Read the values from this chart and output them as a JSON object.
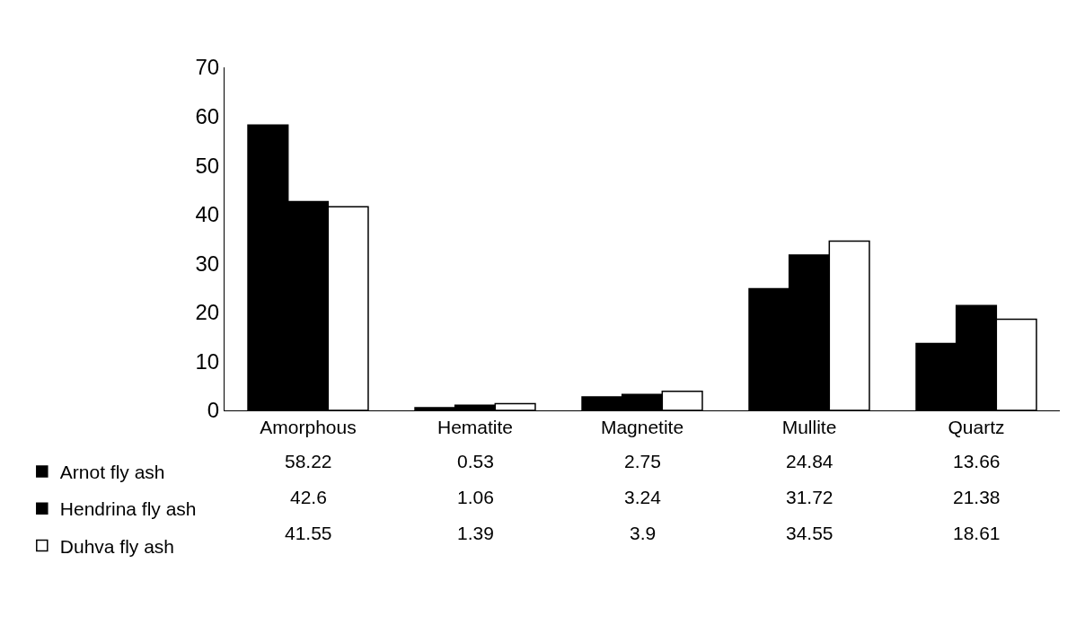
{
  "chart_data": {
    "type": "bar",
    "categories": [
      "Amorphous",
      "Hematite",
      "Magnetite",
      "Mullite",
      "Quartz"
    ],
    "series": [
      {
        "name": "Arnot fly ash",
        "color": "#000000",
        "values": [
          58.22,
          0.53,
          2.75,
          24.84,
          13.66
        ]
      },
      {
        "name": "Hendrina fly ash",
        "color": "#000000",
        "values": [
          42.6,
          1.06,
          3.24,
          31.72,
          21.38
        ]
      },
      {
        "name": "Duhva fly ash",
        "color": "#ffffff",
        "values": [
          41.55,
          1.39,
          3.9,
          34.55,
          18.61
        ]
      }
    ],
    "ylim": [
      0,
      70
    ],
    "yticks": [
      0,
      10,
      20,
      30,
      40,
      50,
      60,
      70
    ],
    "grid": false,
    "legend": "bottom left",
    "data_labels": true
  }
}
